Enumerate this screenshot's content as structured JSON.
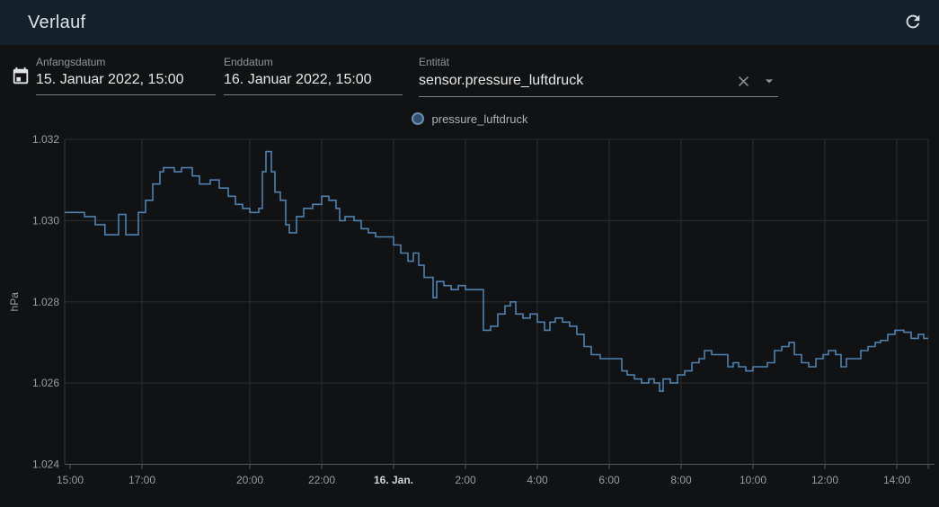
{
  "app_bar": {
    "title": "Verlauf",
    "refresh_icon": "refresh-icon"
  },
  "controls": {
    "calendar_icon": "calendar-icon",
    "start_date": {
      "label": "Anfangsdatum",
      "value": "15. Januar 2022, 15:00"
    },
    "end_date": {
      "label": "Enddatum",
      "value": "16. Januar 2022, 15:00"
    },
    "entity": {
      "label": "Entität",
      "value": "sensor.pressure_luftdruck",
      "clear_icon": "close-icon",
      "dropdown_icon": "caret-down-icon"
    }
  },
  "legend": {
    "items": [
      {
        "label": "pressure_luftdruck",
        "dot_fill": "#30506e",
        "dot_border": "#6b8fb0"
      }
    ]
  },
  "colors": {
    "series_line": "#4e81b0",
    "app_bar_bg": "#13212a",
    "page_bg": "#111213",
    "grid": "#2b2e31",
    "axis": "#56595c",
    "tick_text": "#9a9da0",
    "tick_text_bold": "#d0d3d5"
  },
  "chart_data": {
    "type": "line",
    "step": true,
    "title": "",
    "xlabel": "",
    "ylabel": "hPa",
    "legend_position": "top-center",
    "grid": true,
    "x_start": "15. Januar 2022, 15:00",
    "x_end": "16. Januar 2022, 15:00",
    "ylim": [
      1024,
      1032
    ],
    "y_ticks": [
      {
        "v": 1032,
        "label": "1.032"
      },
      {
        "v": 1030,
        "label": "1.030"
      },
      {
        "v": 1028,
        "label": "1.028"
      },
      {
        "v": 1026,
        "label": "1.026"
      },
      {
        "v": 1024,
        "label": "1.024"
      }
    ],
    "x_ticks": [
      {
        "h": 0,
        "label": "15:00"
      },
      {
        "h": 2,
        "label": "17:00"
      },
      {
        "h": 5,
        "label": "20:00"
      },
      {
        "h": 7,
        "label": "22:00"
      },
      {
        "h": 9,
        "label": "16. Jan.",
        "bold": true
      },
      {
        "h": 11,
        "label": "2:00"
      },
      {
        "h": 13,
        "label": "4:00"
      },
      {
        "h": 15,
        "label": "6:00"
      },
      {
        "h": 17,
        "label": "8:00"
      },
      {
        "h": 19,
        "label": "10:00"
      },
      {
        "h": 21,
        "label": "12:00"
      },
      {
        "h": 23,
        "label": "14:00"
      }
    ],
    "series": [
      {
        "name": "pressure_luftdruck",
        "unit": "hPa",
        "color": "#4e81b0",
        "hours_from_start": [
          0,
          0.4,
          0.7,
          0.97,
          1.35,
          1.55,
          1.9,
          2.1,
          2.3,
          2.5,
          2.6,
          2.9,
          3.1,
          3.4,
          3.6,
          3.9,
          4.15,
          4.4,
          4.6,
          4.8,
          5.0,
          5.25,
          5.35,
          5.45,
          5.6,
          5.7,
          5.85,
          6.0,
          6.1,
          6.3,
          6.5,
          6.75,
          7.0,
          7.2,
          7.4,
          7.5,
          7.65,
          7.9,
          8.1,
          8.3,
          8.5,
          8.75,
          9.0,
          9.2,
          9.4,
          9.55,
          9.7,
          9.85,
          10.0,
          10.1,
          10.2,
          10.4,
          10.6,
          10.8,
          11.0,
          11.2,
          11.4,
          11.5,
          11.7,
          11.9,
          12.1,
          12.25,
          12.4,
          12.6,
          12.8,
          13.0,
          13.2,
          13.35,
          13.5,
          13.7,
          13.9,
          14.1,
          14.3,
          14.5,
          14.75,
          15.1,
          15.35,
          15.5,
          15.7,
          15.9,
          16.1,
          16.25,
          16.4,
          16.5,
          16.7,
          16.9,
          17.1,
          17.3,
          17.5,
          17.65,
          17.85,
          18.1,
          18.3,
          18.45,
          18.6,
          18.8,
          19.0,
          19.2,
          19.4,
          19.6,
          19.8,
          20.0,
          20.15,
          20.35,
          20.55,
          20.75,
          20.95,
          21.1,
          21.3,
          21.45,
          21.6,
          21.8,
          22.0,
          22.2,
          22.4,
          22.55,
          22.75,
          22.95,
          23.2,
          23.4,
          23.6,
          23.75
        ],
        "values_hpa": [
          1030.2,
          1030.1,
          1029.9,
          1029.65,
          1030.15,
          1029.65,
          1030.2,
          1030.5,
          1030.9,
          1031.2,
          1031.3,
          1031.2,
          1031.3,
          1031.1,
          1030.9,
          1031.0,
          1030.8,
          1030.6,
          1030.4,
          1030.3,
          1030.2,
          1030.3,
          1031.2,
          1031.7,
          1031.2,
          1030.7,
          1030.5,
          1029.9,
          1029.7,
          1030.1,
          1030.3,
          1030.4,
          1030.6,
          1030.5,
          1030.3,
          1030.0,
          1030.1,
          1030.0,
          1029.8,
          1029.7,
          1029.6,
          1029.6,
          1029.4,
          1029.2,
          1029.0,
          1029.2,
          1028.9,
          1028.6,
          1028.6,
          1028.1,
          1028.5,
          1028.4,
          1028.3,
          1028.4,
          1028.3,
          1028.3,
          1028.3,
          1027.3,
          1027.4,
          1027.7,
          1027.9,
          1028.0,
          1027.7,
          1027.6,
          1027.7,
          1027.5,
          1027.3,
          1027.5,
          1027.6,
          1027.5,
          1027.4,
          1027.2,
          1026.9,
          1026.7,
          1026.6,
          1026.6,
          1026.3,
          1026.2,
          1026.1,
          1026.0,
          1026.1,
          1026.0,
          1025.8,
          1026.1,
          1026.0,
          1026.2,
          1026.3,
          1026.5,
          1026.6,
          1026.8,
          1026.7,
          1026.7,
          1026.4,
          1026.5,
          1026.4,
          1026.3,
          1026.4,
          1026.4,
          1026.5,
          1026.8,
          1026.9,
          1027.0,
          1026.7,
          1026.5,
          1026.4,
          1026.6,
          1026.7,
          1026.8,
          1026.7,
          1026.4,
          1026.6,
          1026.6,
          1026.8,
          1026.9,
          1027.0,
          1027.05,
          1027.2,
          1027.3,
          1027.25,
          1027.1,
          1027.2,
          1027.1
        ]
      }
    ]
  }
}
